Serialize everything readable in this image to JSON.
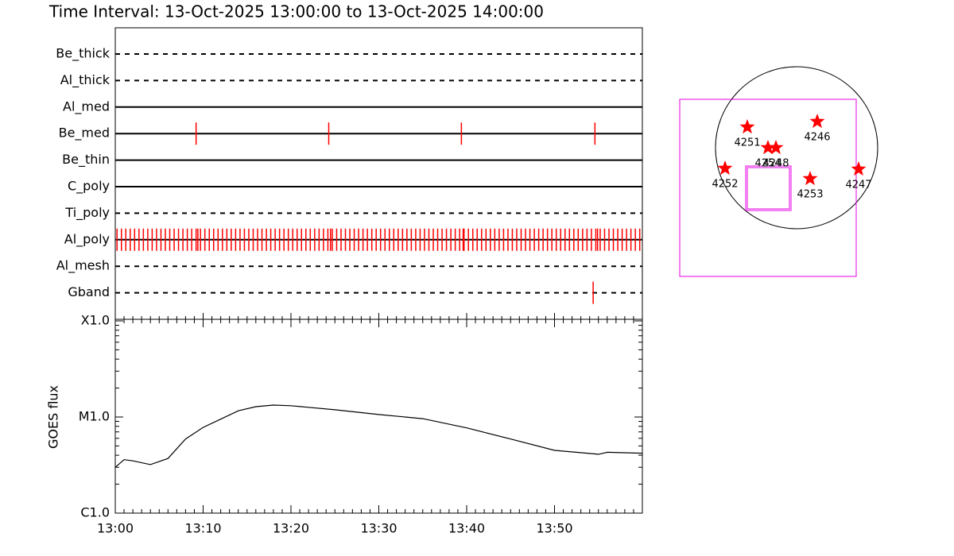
{
  "title": "Time Interval: 13-Oct-2025 13:00:00 to 13-Oct-2025 14:00:00",
  "chart_data": [
    {
      "type": "timeline",
      "xlim": [
        0,
        60
      ],
      "event_color": "#ff0000",
      "rows": [
        {
          "name": "Be_thick",
          "line": "dashed",
          "events": []
        },
        {
          "name": "Al_thick",
          "line": "dashed",
          "events": []
        },
        {
          "name": "Al_med",
          "line": "solid",
          "events": []
        },
        {
          "name": "Be_med",
          "line": "solid",
          "events": [
            9.2,
            24.3,
            39.4,
            54.6
          ]
        },
        {
          "name": "Be_thin",
          "line": "solid",
          "events": []
        },
        {
          "name": "C_poly",
          "line": "solid",
          "events": []
        },
        {
          "name": "Ti_poly",
          "line": "dashed",
          "events": []
        },
        {
          "name": "Al_poly",
          "line": "solid",
          "events": [
            0.2,
            0.7,
            1.2,
            1.7,
            2.2,
            2.7,
            3.2,
            3.7,
            4.2,
            4.7,
            5.2,
            5.7,
            6.2,
            6.7,
            7.2,
            7.7,
            8.2,
            8.7,
            9.2,
            9.7,
            10.2,
            10.7,
            11.2,
            11.7,
            12.2,
            12.7,
            13.2,
            13.7,
            14.2,
            14.7,
            15.2,
            15.7,
            16.2,
            16.7,
            17.2,
            17.7,
            18.2,
            18.7,
            19.2,
            19.7,
            20.2,
            20.7,
            21.2,
            21.7,
            22.2,
            22.7,
            23.2,
            23.7,
            24.2,
            24.7,
            25.2,
            25.7,
            26.2,
            26.7,
            27.2,
            27.7,
            28.2,
            28.7,
            29.2,
            29.7,
            30.2,
            30.7,
            31.2,
            31.7,
            32.2,
            32.7,
            33.2,
            33.7,
            34.2,
            34.7,
            35.2,
            35.7,
            36.2,
            36.7,
            37.2,
            37.7,
            38.2,
            38.7,
            39.2,
            39.7,
            40.2,
            40.7,
            41.2,
            41.7,
            42.2,
            42.7,
            43.2,
            43.7,
            44.2,
            44.7,
            45.2,
            45.7,
            46.2,
            46.7,
            47.2,
            47.7,
            48.2,
            48.7,
            49.2,
            49.7,
            50.2,
            50.7,
            51.2,
            51.7,
            52.2,
            52.7,
            53.2,
            53.7,
            54.2,
            54.7,
            55.2,
            55.7,
            56.2,
            56.7,
            57.2,
            57.7,
            58.2,
            58.7,
            59.2,
            59.7,
            9.4,
            24.5,
            39.6,
            54.9
          ]
        },
        {
          "name": "Al_mesh",
          "line": "dashed",
          "events": []
        },
        {
          "name": "Gband",
          "line": "dashed",
          "events": [
            54.4
          ]
        }
      ]
    },
    {
      "type": "line",
      "ylabel": "GOES flux",
      "color": "#000000",
      "log_y": true,
      "x": [
        0,
        1,
        2,
        4,
        6,
        8,
        10,
        12,
        14,
        16,
        18,
        20,
        25,
        30,
        35,
        40,
        45,
        50,
        55,
        56,
        60
      ],
      "values": [
        3e-06,
        3.6e-06,
        3.5e-06,
        3.2e-06,
        3.7e-06,
        5.9e-06,
        7.8e-06,
        9.5e-06,
        1.16e-05,
        1.28e-05,
        1.33e-05,
        1.31e-05,
        1.19e-05,
        1.06e-05,
        9.6e-06,
        7.7e-06,
        5.9e-06,
        4.5e-06,
        4.1e-06,
        4.3e-06,
        4.2e-06
      ],
      "xlim": [
        0,
        60
      ],
      "xticks": [
        {
          "value": 0,
          "label": "13:00"
        },
        {
          "value": 10,
          "label": "13:10"
        },
        {
          "value": 20,
          "label": "13:20"
        },
        {
          "value": 30,
          "label": "13:30"
        },
        {
          "value": 40,
          "label": "13:40"
        },
        {
          "value": 50,
          "label": "13:50"
        }
      ],
      "ylim": [
        1e-06,
        0.0001
      ],
      "yticks": [
        {
          "value": 0.0001,
          "label": "X1.0"
        },
        {
          "value": 1e-05,
          "label": "M1.0"
        },
        {
          "value": 1e-06,
          "label": "C1.0"
        }
      ]
    }
  ],
  "map": {
    "regions": [
      "4251",
      "4246",
      "4254",
      "4248",
      "4252",
      "4253",
      "4247"
    ],
    "star_color": "#ff0000",
    "box_color": "#e600e6"
  }
}
